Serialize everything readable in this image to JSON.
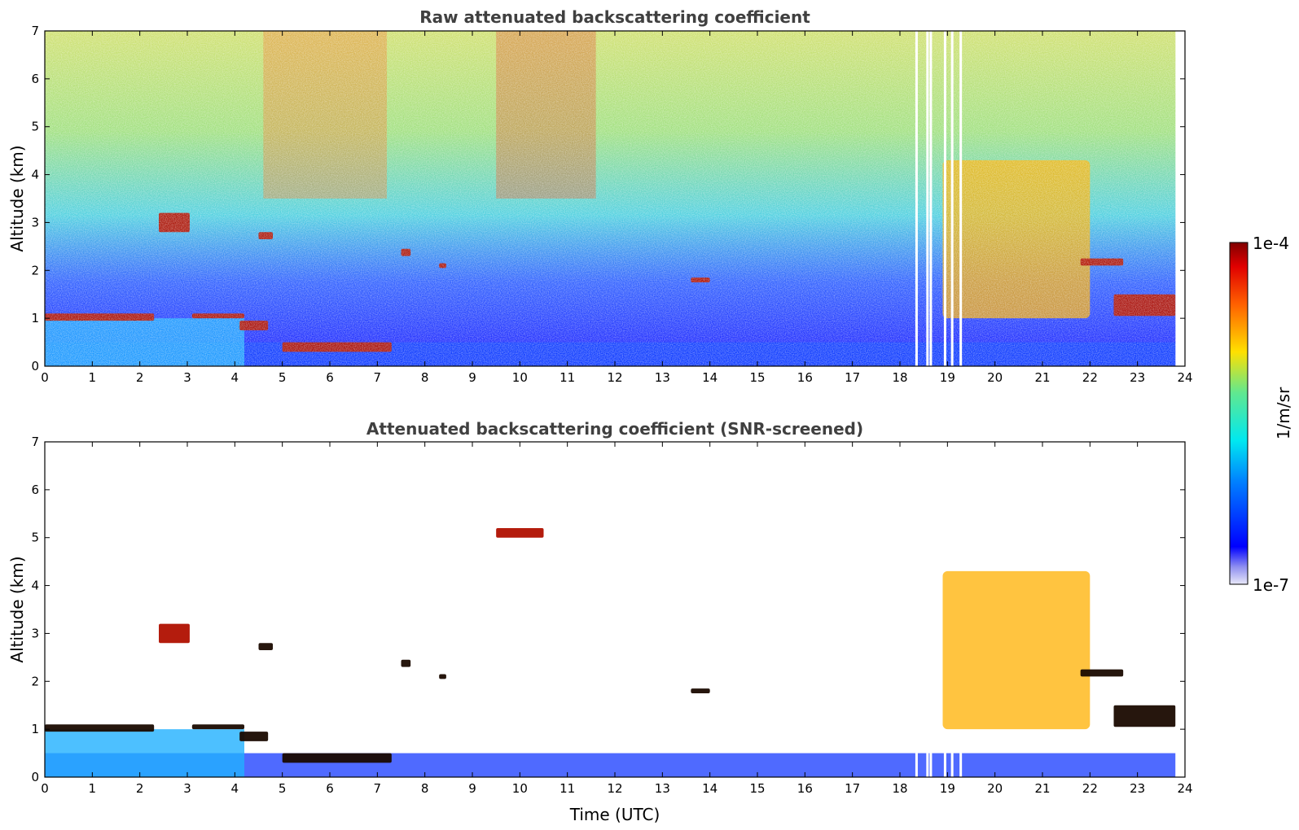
{
  "chart_data": [
    {
      "type": "heatmap",
      "title": "Raw attenuated backscattering coefficient",
      "xlabel": "",
      "ylabel": "Altitude (km)",
      "xlim": [
        0,
        24
      ],
      "ylim": [
        0,
        7
      ],
      "x_ticks": [
        0,
        1,
        2,
        3,
        4,
        5,
        6,
        7,
        8,
        9,
        10,
        11,
        12,
        13,
        14,
        15,
        16,
        17,
        18,
        19,
        20,
        21,
        22,
        23,
        24
      ],
      "y_ticks": [
        0,
        1,
        2,
        3,
        4,
        5,
        6,
        7
      ],
      "data_end_hour": 23.8,
      "noise_background": "high (green-yellow) aloft, rising to red near 4.6-7.2 h and 9.5-11.6 h above 4 km",
      "missing_profiles_hours": [
        18.35,
        18.58,
        18.65,
        18.95,
        19.1,
        19.28
      ],
      "features": [
        {
          "name": "boundary layer top",
          "hours": [
            0,
            2.3
          ],
          "altitude_km": [
            0.95,
            1.1
          ],
          "level": "high"
        },
        {
          "name": "cloud",
          "hours": [
            2.4,
            3.05
          ],
          "altitude_km": [
            2.8,
            3.2
          ],
          "level": "high"
        },
        {
          "name": "boundary layer top",
          "hours": [
            3.1,
            4.2
          ],
          "altitude_km": [
            1.0,
            1.1
          ],
          "level": "high"
        },
        {
          "name": "cloud",
          "hours": [
            4.1,
            4.7
          ],
          "altitude_km": [
            0.75,
            0.95
          ],
          "level": "high"
        },
        {
          "name": "cloud",
          "hours": [
            4.5,
            4.8
          ],
          "altitude_km": [
            2.65,
            2.8
          ],
          "level": "high"
        },
        {
          "name": "boundary layer top",
          "hours": [
            5.0,
            7.3
          ],
          "altitude_km": [
            0.3,
            0.5
          ],
          "level": "high"
        },
        {
          "name": "cloud",
          "hours": [
            7.5,
            7.7
          ],
          "altitude_km": [
            2.3,
            2.45
          ],
          "level": "high"
        },
        {
          "name": "cloud",
          "hours": [
            8.3,
            8.45
          ],
          "altitude_km": [
            2.05,
            2.15
          ],
          "level": "high"
        },
        {
          "name": "cloud",
          "hours": [
            13.6,
            14.0
          ],
          "altitude_km": [
            1.75,
            1.85
          ],
          "level": "high"
        },
        {
          "name": "precipitating layer",
          "hours": [
            18.9,
            22.0
          ],
          "altitude_km": [
            1.0,
            4.3
          ],
          "level": "medium"
        },
        {
          "name": "cloud",
          "hours": [
            21.8,
            22.7
          ],
          "altitude_km": [
            2.1,
            2.25
          ],
          "level": "high"
        },
        {
          "name": "cloud",
          "hours": [
            22.5,
            23.8
          ],
          "altitude_km": [
            1.05,
            1.5
          ],
          "level": "high"
        }
      ]
    },
    {
      "type": "heatmap",
      "title": "Attenuated backscattering coefficient (SNR-screened)",
      "xlabel": "Time (UTC)",
      "ylabel": "Altitude (km)",
      "xlim": [
        0,
        24
      ],
      "ylim": [
        0,
        7
      ],
      "x_ticks": [
        0,
        1,
        2,
        3,
        4,
        5,
        6,
        7,
        8,
        9,
        10,
        11,
        12,
        13,
        14,
        15,
        16,
        17,
        18,
        19,
        20,
        21,
        22,
        23,
        24
      ],
      "y_ticks": [
        0,
        1,
        2,
        3,
        4,
        5,
        6,
        7
      ],
      "data_end_hour": 23.8,
      "noise_background": "removed (white)",
      "missing_profiles_hours": [
        18.35,
        18.58,
        18.65,
        18.95,
        19.1,
        19.28
      ],
      "features": [
        {
          "name": "boundary layer top",
          "hours": [
            0,
            2.3
          ],
          "altitude_km": [
            0.95,
            1.1
          ],
          "level": "saturated"
        },
        {
          "name": "cloud",
          "hours": [
            2.4,
            3.05
          ],
          "altitude_km": [
            2.8,
            3.2
          ],
          "level": "high"
        },
        {
          "name": "boundary layer top",
          "hours": [
            3.1,
            4.2
          ],
          "altitude_km": [
            1.0,
            1.1
          ],
          "level": "saturated"
        },
        {
          "name": "cloud",
          "hours": [
            4.1,
            4.7
          ],
          "altitude_km": [
            0.75,
            0.95
          ],
          "level": "saturated"
        },
        {
          "name": "cloud",
          "hours": [
            4.5,
            4.8
          ],
          "altitude_km": [
            2.65,
            2.8
          ],
          "level": "saturated"
        },
        {
          "name": "boundary layer top",
          "hours": [
            5.0,
            7.3
          ],
          "altitude_km": [
            0.3,
            0.5
          ],
          "level": "saturated"
        },
        {
          "name": "cloud",
          "hours": [
            7.5,
            7.7
          ],
          "altitude_km": [
            2.3,
            2.45
          ],
          "level": "saturated"
        },
        {
          "name": "cloud",
          "hours": [
            8.3,
            8.45
          ],
          "altitude_km": [
            2.05,
            2.15
          ],
          "level": "saturated"
        },
        {
          "name": "cloud",
          "hours": [
            9.5,
            10.5
          ],
          "altitude_km": [
            5.0,
            5.2
          ],
          "level": "high"
        },
        {
          "name": "cloud",
          "hours": [
            13.6,
            14.0
          ],
          "altitude_km": [
            1.75,
            1.85
          ],
          "level": "saturated"
        },
        {
          "name": "precipitating layer",
          "hours": [
            18.9,
            22.0
          ],
          "altitude_km": [
            1.0,
            4.3
          ],
          "level": "medium"
        },
        {
          "name": "cloud",
          "hours": [
            21.8,
            22.7
          ],
          "altitude_km": [
            2.1,
            2.25
          ],
          "level": "saturated"
        },
        {
          "name": "cloud",
          "hours": [
            22.5,
            23.8
          ],
          "altitude_km": [
            1.05,
            1.5
          ],
          "level": "saturated"
        }
      ]
    }
  ],
  "colorbar": {
    "label": "1/m/sr",
    "max_label": "1e-4",
    "min_label": "1e-7",
    "colormap": "jet",
    "scale": "log"
  }
}
